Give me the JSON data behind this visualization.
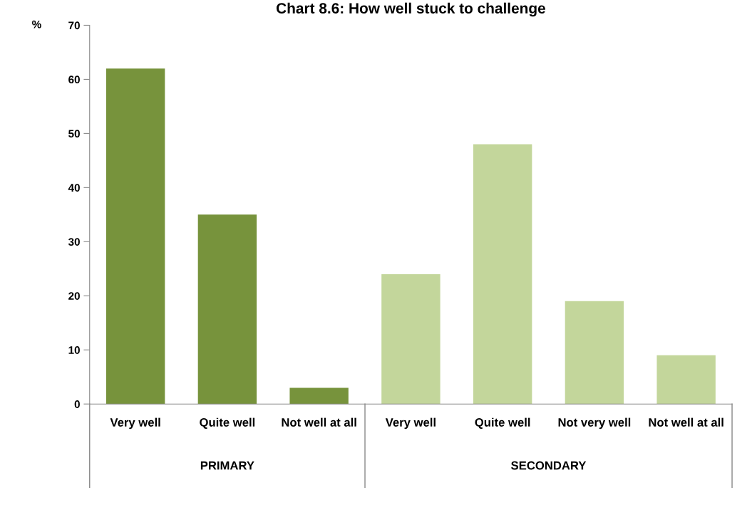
{
  "chart_data": {
    "type": "bar",
    "title": "Chart 8.6: How well stuck to challenge",
    "ylabel": "%",
    "categories": [
      "Very well",
      "Quite well",
      "Not well at all",
      "Very well",
      "Quite well",
      "Not very well",
      "Not well at all"
    ],
    "series": [
      {
        "color": "#77933c",
        "values": [
          62,
          35,
          3,
          null,
          null,
          null,
          null
        ]
      },
      {
        "color": "#c3d69b",
        "values": [
          null,
          null,
          null,
          24,
          48,
          19,
          9
        ]
      }
    ],
    "annotations": [
      "PRIMARY",
      "SECONDARY"
    ],
    "ylim": [
      0,
      70
    ],
    "yticks": [
      0,
      10,
      20,
      30,
      40,
      50,
      60,
      70
    ],
    "grid": false,
    "legend": false
  }
}
